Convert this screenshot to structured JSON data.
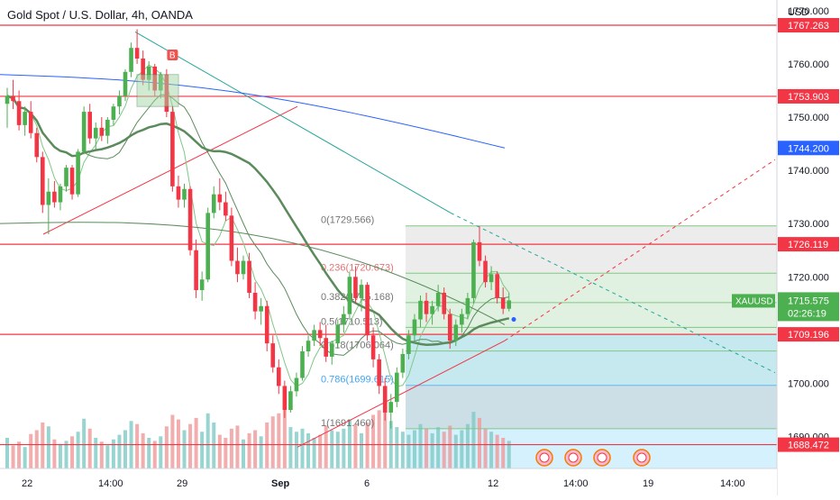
{
  "header": {
    "title": "Gold Spot / U.S. Dollar, 4h, OANDA"
  },
  "currency_label": "USD",
  "symbol_tag": "XAUUSD",
  "current_price": {
    "value": "1715.575",
    "countdown": "02:26:19",
    "numeric": 1715.575
  },
  "price_ticks": [
    "1770.000",
    "1760.000",
    "1750.000",
    "1740.000",
    "1730.000",
    "1720.000",
    "1700.000",
    "1690.000"
  ],
  "time_ticks": [
    "22",
    "14:00",
    "29",
    "Sep",
    "6",
    "12",
    "14:00",
    "19",
    "14:00"
  ],
  "marker_label": "B",
  "horizontal_levels": [
    {
      "label": "1767.263",
      "value": 1767.263,
      "color": "#f23645"
    },
    {
      "label": "1753.903",
      "value": 1753.903,
      "color": "#f23645"
    },
    {
      "label": "1726.119",
      "value": 1726.119,
      "color": "#f23645"
    },
    {
      "label": "1709.196",
      "value": 1709.196,
      "color": "#f23645"
    },
    {
      "label": "1688.472",
      "value": 1688.472,
      "color": "#f23645"
    }
  ],
  "ma_label": {
    "label": "1744.200",
    "value": 1744.2,
    "color": "#2962ff"
  },
  "fib_levels": [
    {
      "ratio": "0",
      "price": "(1729.566)",
      "value": 1729.566
    },
    {
      "ratio": "0.236",
      "price": "(1720.673)",
      "value": 1720.673
    },
    {
      "ratio": "0.382",
      "price": "(1715.168)",
      "value": 1715.168
    },
    {
      "ratio": "0.5",
      "price": "(1710.513)",
      "value": 1710.513
    },
    {
      "ratio": "0.618",
      "price": "(1706.064)",
      "value": 1706.064
    },
    {
      "ratio": "0.786",
      "price": "(1699.615)",
      "value": 1699.615
    },
    {
      "ratio": "1",
      "price": "(1691.460)",
      "value": 1691.46
    }
  ],
  "colors": {
    "up": "#26a69a",
    "up_candle": "#4caf50",
    "down": "#f23645",
    "ma_blue": "#2962ff",
    "ma_green_dark": "#5b8a5b",
    "ma_green_light": "#81c784",
    "volume_up": "#80cbc4",
    "volume_down": "#ef9a9a",
    "fib_zone": "#c8e6c9",
    "forecast": "#b3e5fc"
  },
  "chart_data": {
    "type": "candlestick",
    "title": "Gold Spot / U.S. Dollar, 4h, OANDA",
    "ylabel": "USD",
    "ylim": [
      1684,
      1772
    ],
    "candles": [
      [
        1752.5,
        1755.5,
        1748.0,
        1754.0
      ],
      [
        1754.0,
        1757.0,
        1751.5,
        1753.0
      ],
      [
        1753.0,
        1755.0,
        1747.5,
        1748.5
      ],
      [
        1748.5,
        1752.0,
        1746.5,
        1751.0
      ],
      [
        1751.0,
        1753.0,
        1746.0,
        1747.0
      ],
      [
        1747.0,
        1748.0,
        1741.5,
        1742.5
      ],
      [
        1742.5,
        1743.5,
        1732.0,
        1733.5
      ],
      [
        1733.5,
        1738.5,
        1728.0,
        1736.0
      ],
      [
        1736.0,
        1738.0,
        1733.0,
        1734.0
      ],
      [
        1734.0,
        1737.5,
        1732.5,
        1737.0
      ],
      [
        1737.0,
        1741.0,
        1736.0,
        1740.5
      ],
      [
        1740.5,
        1741.0,
        1734.5,
        1735.5
      ],
      [
        1735.5,
        1744.0,
        1735.0,
        1743.5
      ],
      [
        1743.5,
        1752.0,
        1743.0,
        1751.0
      ],
      [
        1751.0,
        1752.5,
        1745.0,
        1746.0
      ],
      [
        1746.0,
        1749.0,
        1744.0,
        1748.0
      ],
      [
        1748.0,
        1750.0,
        1745.5,
        1746.5
      ],
      [
        1746.5,
        1750.0,
        1745.0,
        1749.5
      ],
      [
        1749.5,
        1752.5,
        1748.5,
        1752.0
      ],
      [
        1752.0,
        1755.0,
        1750.5,
        1754.0
      ],
      [
        1754.0,
        1759.0,
        1753.0,
        1758.5
      ],
      [
        1758.5,
        1764.0,
        1757.5,
        1763.0
      ],
      [
        1763.0,
        1766.5,
        1760.0,
        1761.0
      ],
      [
        1761.0,
        1762.5,
        1756.0,
        1757.0
      ],
      [
        1757.0,
        1760.5,
        1755.0,
        1759.5
      ],
      [
        1759.5,
        1760.0,
        1754.0,
        1755.0
      ],
      [
        1755.0,
        1758.5,
        1753.5,
        1758.0
      ],
      [
        1758.0,
        1759.0,
        1750.0,
        1751.0
      ],
      [
        1751.0,
        1752.0,
        1736.0,
        1737.0
      ],
      [
        1737.0,
        1739.0,
        1733.0,
        1734.5
      ],
      [
        1734.5,
        1737.5,
        1733.0,
        1736.5
      ],
      [
        1736.5,
        1737.0,
        1724.0,
        1725.0
      ],
      [
        1725.0,
        1727.0,
        1716.0,
        1717.5
      ],
      [
        1717.5,
        1721.0,
        1715.5,
        1719.5
      ],
      [
        1719.5,
        1733.0,
        1719.0,
        1732.0
      ],
      [
        1732.0,
        1737.0,
        1731.0,
        1735.5
      ],
      [
        1735.5,
        1738.5,
        1732.5,
        1734.0
      ],
      [
        1734.0,
        1736.0,
        1730.5,
        1731.5
      ],
      [
        1731.5,
        1733.0,
        1722.0,
        1723.0
      ],
      [
        1723.0,
        1725.5,
        1719.0,
        1720.5
      ],
      [
        1720.5,
        1724.0,
        1719.5,
        1723.0
      ],
      [
        1723.0,
        1724.5,
        1716.0,
        1717.0
      ],
      [
        1717.0,
        1719.0,
        1712.0,
        1713.5
      ],
      [
        1713.5,
        1716.0,
        1711.0,
        1714.5
      ],
      [
        1714.5,
        1715.5,
        1706.0,
        1707.5
      ],
      [
        1707.5,
        1709.0,
        1702.0,
        1703.0
      ],
      [
        1703.0,
        1704.5,
        1698.0,
        1699.5
      ],
      [
        1699.5,
        1700.5,
        1693.5,
        1695.0
      ],
      [
        1695.0,
        1699.5,
        1694.5,
        1698.5
      ],
      [
        1698.5,
        1702.0,
        1697.5,
        1701.0
      ],
      [
        1701.0,
        1707.0,
        1700.5,
        1706.0
      ],
      [
        1706.0,
        1709.0,
        1705.0,
        1708.0
      ],
      [
        1708.0,
        1711.0,
        1707.0,
        1710.0
      ],
      [
        1710.0,
        1711.5,
        1707.0,
        1708.5
      ],
      [
        1708.5,
        1711.0,
        1704.0,
        1705.0
      ],
      [
        1705.0,
        1708.0,
        1703.5,
        1707.5
      ],
      [
        1707.5,
        1712.0,
        1706.5,
        1711.0
      ],
      [
        1711.0,
        1714.5,
        1709.5,
        1713.0
      ],
      [
        1713.0,
        1721.0,
        1712.0,
        1720.0
      ],
      [
        1720.0,
        1722.0,
        1715.0,
        1716.0
      ],
      [
        1716.0,
        1719.5,
        1713.5,
        1718.5
      ],
      [
        1718.5,
        1719.0,
        1708.0,
        1709.0
      ],
      [
        1709.0,
        1710.5,
        1703.0,
        1704.5
      ],
      [
        1704.5,
        1705.5,
        1698.0,
        1699.5
      ],
      [
        1699.5,
        1701.0,
        1693.0,
        1694.5
      ],
      [
        1694.5,
        1698.0,
        1691.5,
        1696.5
      ],
      [
        1696.5,
        1703.0,
        1695.5,
        1702.0
      ],
      [
        1702.0,
        1706.5,
        1701.0,
        1705.5
      ],
      [
        1705.5,
        1710.0,
        1704.5,
        1709.0
      ],
      [
        1709.0,
        1713.0,
        1707.5,
        1712.0
      ],
      [
        1712.0,
        1716.5,
        1710.5,
        1715.5
      ],
      [
        1715.5,
        1717.0,
        1711.5,
        1713.0
      ],
      [
        1713.0,
        1715.5,
        1711.0,
        1714.5
      ],
      [
        1714.5,
        1718.5,
        1713.5,
        1717.0
      ],
      [
        1717.0,
        1718.0,
        1712.0,
        1713.0
      ],
      [
        1713.0,
        1714.0,
        1706.5,
        1708.0
      ],
      [
        1708.0,
        1712.0,
        1707.0,
        1711.0
      ],
      [
        1711.0,
        1714.0,
        1709.5,
        1713.0
      ],
      [
        1713.0,
        1717.0,
        1712.0,
        1716.0
      ],
      [
        1716.0,
        1727.0,
        1715.0,
        1726.5
      ],
      [
        1726.5,
        1729.5,
        1722.0,
        1723.0
      ],
      [
        1723.0,
        1724.0,
        1718.0,
        1719.0
      ],
      [
        1719.0,
        1722.0,
        1717.5,
        1720.5
      ],
      [
        1720.5,
        1721.0,
        1715.0,
        1716.0
      ],
      [
        1716.0,
        1718.0,
        1713.0,
        1714.0
      ],
      [
        1714.0,
        1717.0,
        1713.5,
        1715.575
      ]
    ],
    "volumes": [
      40,
      30,
      35,
      28,
      45,
      50,
      60,
      55,
      38,
      32,
      36,
      42,
      48,
      65,
      52,
      40,
      35,
      30,
      38,
      44,
      50,
      62,
      58,
      46,
      40,
      36,
      42,
      55,
      70,
      64,
      50,
      58,
      66,
      48,
      72,
      60,
      44,
      40,
      52,
      56,
      38,
      46,
      50,
      42,
      60,
      68,
      72,
      78,
      54,
      48,
      52,
      46,
      40,
      44,
      56,
      50,
      48,
      52,
      64,
      58,
      46,
      60,
      70,
      76,
      80,
      62,
      54,
      48,
      44,
      50,
      58,
      52,
      46,
      54,
      48,
      56,
      44,
      50,
      58,
      74,
      66,
      52,
      48,
      44,
      40,
      36
    ]
  }
}
